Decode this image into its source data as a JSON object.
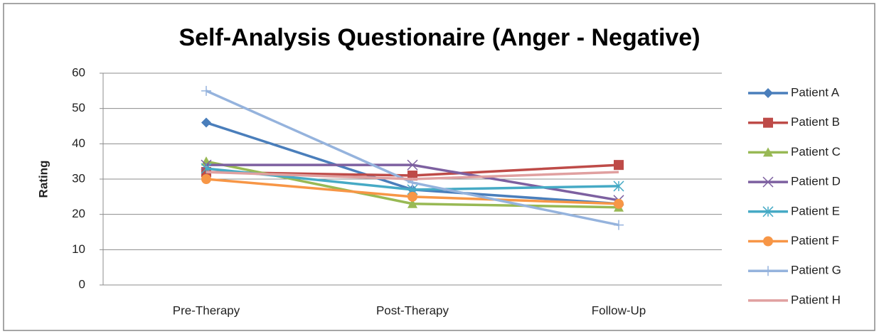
{
  "chart_data": {
    "type": "line",
    "title": "Self-Analysis Questionaire (Anger - Negative)",
    "y_label": "Rating",
    "categories": [
      "Pre-Therapy",
      "Post-Therapy",
      "Follow-Up"
    ],
    "series": [
      {
        "name": "Patient A",
        "color": "#4a7ebb",
        "marker": "diamond",
        "values": [
          46,
          27,
          23
        ]
      },
      {
        "name": "Patient B",
        "color": "#be4b48",
        "marker": "square",
        "values": [
          32,
          31,
          34
        ]
      },
      {
        "name": "Patient C",
        "color": "#98b954",
        "marker": "triangle",
        "values": [
          35,
          23,
          22
        ]
      },
      {
        "name": "Patient D",
        "color": "#7d60a0",
        "marker": "x",
        "values": [
          34,
          34,
          24
        ]
      },
      {
        "name": "Patient E",
        "color": "#46aac5",
        "marker": "asterisk",
        "values": [
          33,
          27,
          28
        ]
      },
      {
        "name": "Patient F",
        "color": "#f79646",
        "marker": "circle",
        "values": [
          30,
          25,
          23
        ]
      },
      {
        "name": "Patient G",
        "color": "#95b3dd",
        "marker": "plus",
        "values": [
          55,
          29,
          17
        ]
      },
      {
        "name": "Patient H",
        "color": "#e0a0a0",
        "marker": "none",
        "values": [
          32,
          30,
          32
        ]
      }
    ],
    "ylim": [
      0,
      60
    ],
    "yticks": [
      0,
      10,
      20,
      30,
      40,
      50,
      60
    ],
    "grid": true,
    "legend": "right"
  }
}
